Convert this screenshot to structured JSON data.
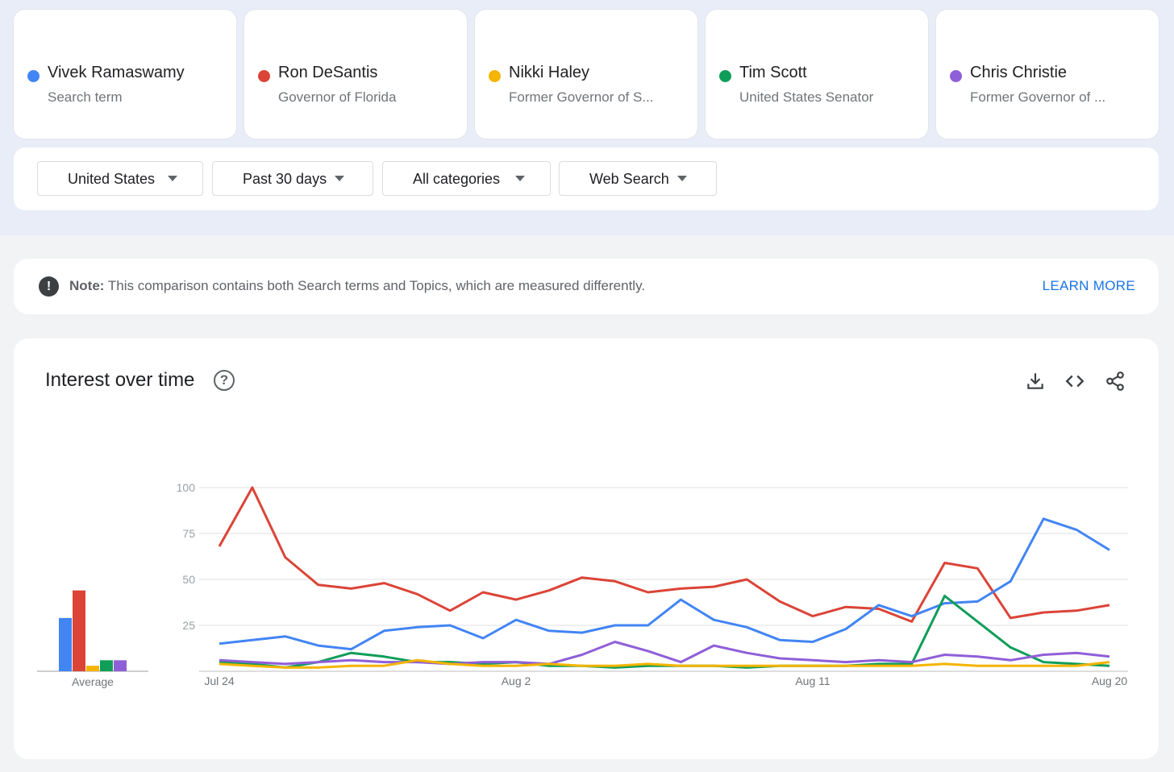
{
  "terms": [
    {
      "name": "Vivek Ramaswamy",
      "sub": "Search term",
      "color": "#4285f4"
    },
    {
      "name": "Ron DeSantis",
      "sub": "Governor of Florida",
      "color": "#db4437"
    },
    {
      "name": "Nikki Haley",
      "sub": "Former Governor of S...",
      "color": "#f4b400"
    },
    {
      "name": "Tim Scott",
      "sub": "United States Senator",
      "color": "#0f9d58"
    },
    {
      "name": "Chris Christie",
      "sub": "Former Governor of ...",
      "color": "#8f5fd8"
    }
  ],
  "filters": {
    "region": "United States",
    "time": "Past 30 days",
    "category": "All categories",
    "search_type": "Web Search"
  },
  "note": {
    "label": "Note:",
    "text": "This comparison contains both Search terms and Topics, which are measured differently.",
    "link": "LEARN MORE"
  },
  "chart_panel": {
    "title": "Interest over time",
    "icons": [
      "help-icon",
      "download-icon",
      "embed-code-icon",
      "share-icon"
    ]
  },
  "chart_data": [
    {
      "type": "bar",
      "xlabel": "Average",
      "categories": [
        "Vivek Ramaswamy",
        "Ron DeSantis",
        "Nikki Haley",
        "Tim Scott",
        "Chris Christie"
      ],
      "values": [
        29,
        44,
        3,
        6,
        6
      ],
      "ylim": [
        0,
        100
      ]
    },
    {
      "type": "line",
      "title": "Interest over time",
      "x": [
        "Jul 24",
        "Jul 25",
        "Jul 26",
        "Jul 27",
        "Jul 28",
        "Jul 29",
        "Jul 30",
        "Jul 31",
        "Aug 1",
        "Aug 2",
        "Aug 3",
        "Aug 4",
        "Aug 5",
        "Aug 6",
        "Aug 7",
        "Aug 8",
        "Aug 9",
        "Aug 10",
        "Aug 11",
        "Aug 12",
        "Aug 13",
        "Aug 14",
        "Aug 15",
        "Aug 16",
        "Aug 17",
        "Aug 18",
        "Aug 19",
        "Aug 20"
      ],
      "xticks": [
        "Jul 24",
        "Aug 2",
        "Aug 11",
        "Aug 20"
      ],
      "yticks": [
        25,
        50,
        75,
        100
      ],
      "ylim": [
        0,
        100
      ],
      "grid": true,
      "series": [
        {
          "name": "Ron DeSantis",
          "color": "#db4437",
          "values": [
            68,
            100,
            62,
            47,
            45,
            48,
            42,
            33,
            43,
            39,
            44,
            51,
            49,
            43,
            45,
            46,
            50,
            38,
            30,
            35,
            34,
            27,
            59,
            56,
            29,
            32,
            33,
            36
          ]
        },
        {
          "name": "Vivek Ramaswamy",
          "color": "#4285f4",
          "values": [
            15,
            17,
            19,
            14,
            12,
            22,
            24,
            25,
            18,
            28,
            22,
            21,
            25,
            25,
            39,
            28,
            24,
            17,
            16,
            23,
            36,
            30,
            37,
            38,
            49,
            83,
            77,
            66
          ]
        },
        {
          "name": "Tim Scott",
          "color": "#0f9d58",
          "values": [
            5,
            4,
            2,
            5,
            10,
            8,
            5,
            5,
            4,
            5,
            3,
            3,
            2,
            3,
            3,
            3,
            2,
            3,
            3,
            3,
            4,
            4,
            41,
            27,
            13,
            5,
            4,
            3
          ]
        },
        {
          "name": "Chris Christie",
          "color": "#8f5fd8",
          "values": [
            6,
            5,
            4,
            5,
            6,
            5,
            5,
            4,
            5,
            5,
            4,
            9,
            16,
            11,
            5,
            14,
            10,
            7,
            6,
            5,
            6,
            5,
            9,
            8,
            6,
            9,
            10,
            8
          ]
        },
        {
          "name": "Nikki Haley",
          "color": "#f4b400",
          "values": [
            4,
            3,
            2,
            2,
            3,
            3,
            6,
            4,
            3,
            3,
            4,
            3,
            3,
            4,
            3,
            3,
            3,
            3,
            3,
            3,
            3,
            3,
            4,
            3,
            3,
            3,
            3,
            5
          ]
        }
      ]
    }
  ]
}
